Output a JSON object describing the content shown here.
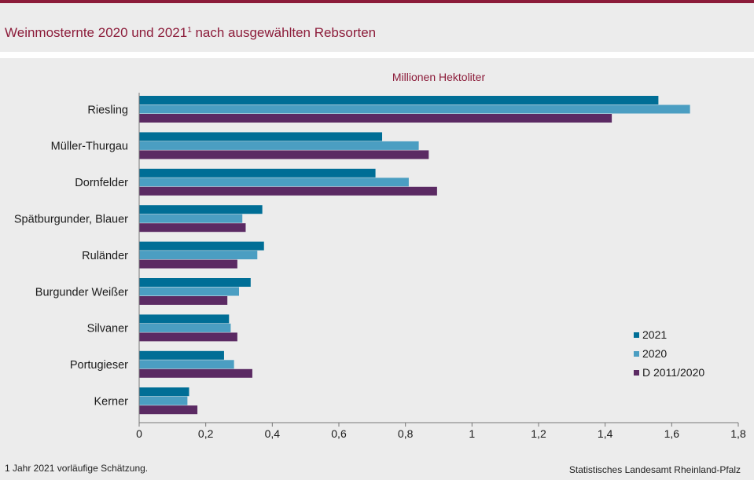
{
  "header": {
    "title_main": "Weinmosternte 2020 und 2021",
    "title_sup": "1",
    "title_tail": " nach ausgewählten Rebsorten"
  },
  "footer": {
    "footnote": "1 Jahr 2021 vorläufige  Schätzung.",
    "source": "Statistisches Landesamt Rheinland-Pfalz"
  },
  "chart_data": {
    "type": "bar",
    "orientation": "horizontal",
    "unit_label": "Millionen Hektoliter",
    "categories": [
      "Riesling",
      "Müller-Thurgau",
      "Dornfelder",
      "Spätburgunder, Blauer",
      "Ruländer",
      "Burgunder Weißer",
      "Silvaner",
      "Portugieser",
      "Kerner"
    ],
    "series": [
      {
        "name": "2021",
        "color": "#006e96",
        "values": [
          1.56,
          0.73,
          0.71,
          0.37,
          0.375,
          0.335,
          0.27,
          0.255,
          0.15
        ]
      },
      {
        "name": "2020",
        "color": "#4b9ec2",
        "values": [
          1.655,
          0.84,
          0.81,
          0.31,
          0.355,
          0.3,
          0.275,
          0.285,
          0.145
        ]
      },
      {
        "name": "D 2011/2020",
        "color": "#5b2a63",
        "values": [
          1.42,
          0.87,
          0.895,
          0.32,
          0.295,
          0.265,
          0.295,
          0.34,
          0.175
        ]
      }
    ],
    "xlim": [
      0,
      1.8
    ],
    "xticks": [
      0,
      0.2,
      0.4,
      0.6,
      0.8,
      1,
      1.2,
      1.4,
      1.6,
      1.8
    ],
    "xtick_labels": [
      "0",
      "0,2",
      "0,4",
      "0,6",
      "0,8",
      "1",
      "1,2",
      "1,4",
      "1,6",
      "1,8"
    ],
    "legend_position": "lower-right",
    "grid": false
  }
}
